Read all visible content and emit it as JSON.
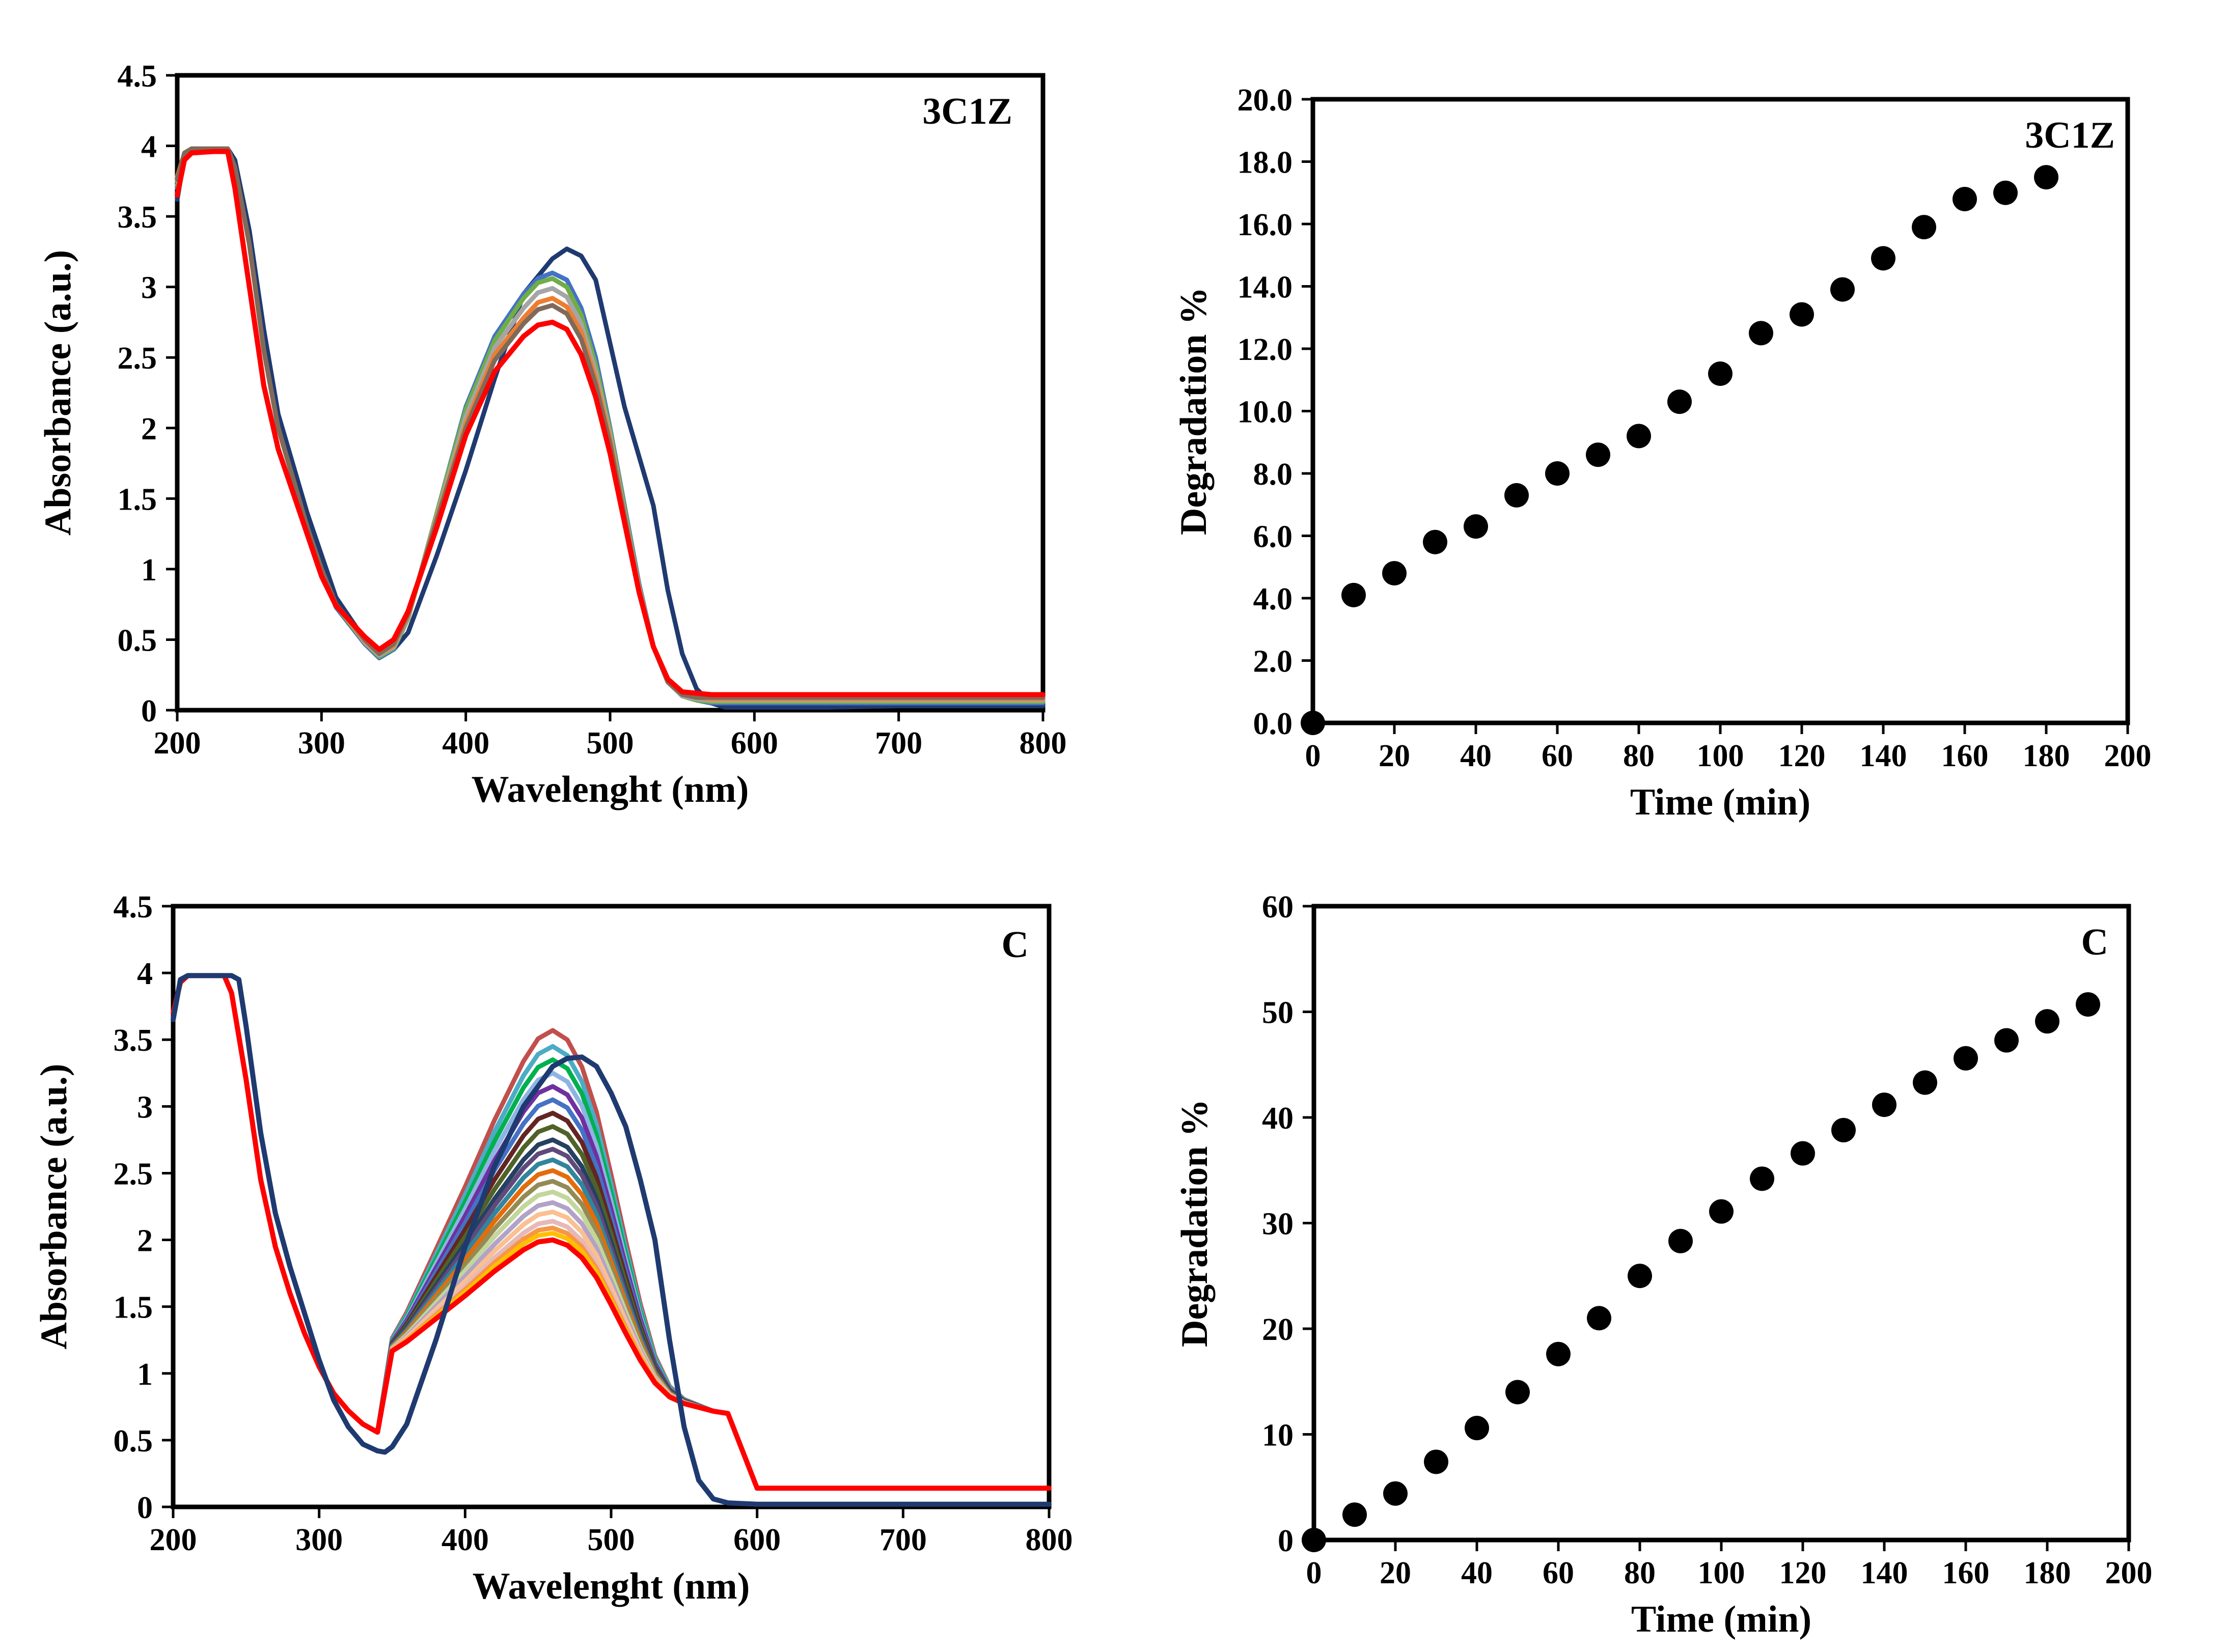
{
  "chart_data": [
    {
      "type": "line",
      "panel": "top-left",
      "annotation": "3C1Z",
      "xlabel": "Wavelenght (nm)",
      "ylabel": "Absorbance (a.u.)",
      "xlim": [
        200,
        800
      ],
      "ylim": [
        0,
        4.5
      ],
      "x_ticks": [
        200,
        300,
        400,
        500,
        600,
        700,
        800
      ],
      "x_tick_labels": [
        "200",
        "300",
        "400",
        "500",
        "600",
        "700",
        "800"
      ],
      "y_ticks": [
        0,
        0.5,
        1,
        1.5,
        2,
        2.5,
        3,
        3.5,
        4,
        4.5
      ],
      "y_tick_labels": [
        "0",
        "0.5",
        "1",
        "1.5",
        "2",
        "2.5",
        "3",
        "3.5",
        "4",
        "4.5"
      ],
      "grid": false,
      "legend": "none",
      "series": [
        {
          "color": "#1f3a70",
          "x": [
            200,
            205,
            210,
            225,
            235,
            240,
            250,
            260,
            270,
            280,
            290,
            300,
            310,
            320,
            330,
            340,
            350,
            360,
            380,
            400,
            420,
            440,
            460,
            470,
            480,
            490,
            500,
            510,
            520,
            530,
            540,
            550,
            560,
            570,
            580,
            600,
            650,
            700,
            800
          ],
          "y": [
            3.62,
            3.92,
            3.98,
            3.98,
            3.98,
            3.9,
            3.4,
            2.7,
            2.1,
            1.75,
            1.4,
            1.1,
            0.8,
            0.65,
            0.5,
            0.42,
            0.43,
            0.55,
            1.1,
            1.7,
            2.35,
            2.95,
            3.2,
            3.27,
            3.22,
            3.05,
            2.6,
            2.15,
            1.8,
            1.45,
            0.85,
            0.4,
            0.15,
            0.05,
            0.02,
            0.02,
            0.02,
            0.03,
            0.03
          ]
        },
        {
          "color": "#4472c4",
          "x": [
            200,
            205,
            210,
            225,
            235,
            240,
            250,
            260,
            270,
            280,
            290,
            300,
            310,
            320,
            330,
            340,
            350,
            360,
            380,
            400,
            420,
            440,
            450,
            460,
            470,
            480,
            490,
            500,
            510,
            520,
            530,
            540,
            550,
            560,
            570,
            580,
            600,
            650,
            700,
            800
          ],
          "y": [
            3.7,
            3.95,
            3.98,
            3.98,
            3.98,
            3.85,
            3.3,
            2.55,
            2.0,
            1.65,
            1.3,
            1.0,
            0.73,
            0.6,
            0.47,
            0.37,
            0.43,
            0.65,
            1.4,
            2.15,
            2.65,
            2.95,
            3.06,
            3.1,
            3.05,
            2.85,
            2.5,
            2.0,
            1.45,
            0.9,
            0.45,
            0.2,
            0.1,
            0.07,
            0.05,
            0.05,
            0.05,
            0.05,
            0.05,
            0.05
          ]
        },
        {
          "color": "#70ad47",
          "x": [
            200,
            205,
            210,
            225,
            235,
            240,
            250,
            260,
            270,
            280,
            290,
            300,
            310,
            320,
            330,
            340,
            350,
            360,
            380,
            400,
            420,
            440,
            450,
            460,
            470,
            480,
            490,
            500,
            510,
            520,
            530,
            540,
            550,
            560,
            570,
            580,
            600,
            650,
            700,
            800
          ],
          "y": [
            3.72,
            3.95,
            3.98,
            3.98,
            3.98,
            3.85,
            3.3,
            2.55,
            2.0,
            1.65,
            1.3,
            1.0,
            0.74,
            0.61,
            0.48,
            0.38,
            0.44,
            0.65,
            1.4,
            2.13,
            2.62,
            2.92,
            3.03,
            3.06,
            3.0,
            2.8,
            2.45,
            1.98,
            1.43,
            0.88,
            0.45,
            0.2,
            0.1,
            0.07,
            0.06,
            0.06,
            0.06,
            0.06,
            0.06,
            0.06
          ]
        },
        {
          "color": "#a5a5a5",
          "x": [
            200,
            205,
            210,
            225,
            235,
            240,
            250,
            260,
            270,
            280,
            290,
            300,
            310,
            320,
            330,
            340,
            350,
            360,
            380,
            400,
            420,
            440,
            450,
            460,
            470,
            480,
            490,
            500,
            510,
            520,
            530,
            540,
            550,
            560,
            570,
            580,
            600,
            650,
            700,
            800
          ],
          "y": [
            3.75,
            3.95,
            3.98,
            3.98,
            3.98,
            3.85,
            3.3,
            2.55,
            2.0,
            1.65,
            1.3,
            1.0,
            0.74,
            0.62,
            0.48,
            0.39,
            0.45,
            0.66,
            1.38,
            2.08,
            2.57,
            2.85,
            2.96,
            2.99,
            2.93,
            2.74,
            2.4,
            1.95,
            1.4,
            0.87,
            0.45,
            0.2,
            0.1,
            0.08,
            0.07,
            0.07,
            0.07,
            0.07,
            0.07,
            0.07
          ]
        },
        {
          "color": "#ed7d31",
          "x": [
            200,
            205,
            210,
            225,
            235,
            240,
            250,
            260,
            270,
            280,
            290,
            300,
            310,
            320,
            330,
            340,
            350,
            360,
            380,
            400,
            420,
            440,
            450,
            460,
            470,
            480,
            490,
            500,
            510,
            520,
            530,
            540,
            550,
            560,
            570,
            580,
            600,
            650,
            700,
            800
          ],
          "y": [
            3.78,
            3.95,
            3.98,
            3.98,
            3.98,
            3.85,
            3.3,
            2.55,
            2.0,
            1.65,
            1.3,
            1.0,
            0.75,
            0.62,
            0.49,
            0.4,
            0.46,
            0.67,
            1.36,
            2.03,
            2.52,
            2.78,
            2.89,
            2.92,
            2.86,
            2.68,
            2.35,
            1.92,
            1.38,
            0.86,
            0.45,
            0.2,
            0.11,
            0.09,
            0.08,
            0.08,
            0.08,
            0.08,
            0.08,
            0.08
          ]
        },
        {
          "color": "#7f6a5a",
          "x": [
            200,
            205,
            210,
            225,
            235,
            240,
            250,
            260,
            270,
            280,
            290,
            300,
            310,
            320,
            330,
            340,
            350,
            360,
            380,
            400,
            420,
            440,
            450,
            460,
            470,
            480,
            490,
            500,
            510,
            520,
            530,
            540,
            550,
            560,
            570,
            580,
            600,
            650,
            700,
            800
          ],
          "y": [
            3.76,
            3.95,
            3.98,
            3.98,
            3.98,
            3.85,
            3.3,
            2.55,
            2.0,
            1.65,
            1.3,
            1.0,
            0.75,
            0.63,
            0.5,
            0.4,
            0.47,
            0.68,
            1.35,
            2.0,
            2.48,
            2.74,
            2.84,
            2.87,
            2.81,
            2.63,
            2.31,
            1.89,
            1.37,
            0.85,
            0.45,
            0.2,
            0.11,
            0.09,
            0.09,
            0.09,
            0.09,
            0.09,
            0.09,
            0.09
          ]
        },
        {
          "color": "#ff0000",
          "x": [
            200,
            205,
            210,
            225,
            235,
            240,
            250,
            260,
            270,
            280,
            290,
            300,
            310,
            320,
            330,
            340,
            350,
            360,
            380,
            400,
            420,
            440,
            450,
            460,
            470,
            480,
            490,
            500,
            510,
            520,
            530,
            540,
            550,
            560,
            570,
            580,
            600,
            650,
            700,
            800
          ],
          "y": [
            3.65,
            3.9,
            3.95,
            3.96,
            3.96,
            3.7,
            3.0,
            2.3,
            1.85,
            1.55,
            1.25,
            0.95,
            0.74,
            0.63,
            0.52,
            0.43,
            0.5,
            0.7,
            1.3,
            1.95,
            2.4,
            2.65,
            2.73,
            2.75,
            2.7,
            2.52,
            2.22,
            1.82,
            1.33,
            0.84,
            0.45,
            0.22,
            0.13,
            0.12,
            0.11,
            0.11,
            0.11,
            0.11,
            0.11,
            0.11
          ]
        }
      ]
    },
    {
      "type": "scatter",
      "panel": "top-right",
      "annotation": "3C1Z",
      "xlabel": "Time (min)",
      "ylabel": "Degradation %",
      "xlim": [
        0,
        200
      ],
      "ylim": [
        0,
        20
      ],
      "x_ticks": [
        0,
        20,
        40,
        60,
        80,
        100,
        120,
        140,
        160,
        180,
        200
      ],
      "x_tick_labels": [
        "0",
        "20",
        "40",
        "60",
        "80",
        "100",
        "120",
        "140",
        "160",
        "180",
        "200"
      ],
      "y_ticks": [
        0,
        2,
        4,
        6,
        8,
        10,
        12,
        14,
        16,
        18,
        20
      ],
      "y_tick_labels": [
        "0.0",
        "2.0",
        "4.0",
        "6.0",
        "8.0",
        "10.0",
        "12.0",
        "14.0",
        "16.0",
        "18.0",
        "20.0"
      ],
      "grid": false,
      "legend": "none",
      "marker_color": "#000000",
      "x": [
        0,
        10,
        20,
        30,
        40,
        50,
        60,
        70,
        80,
        90,
        100,
        110,
        120,
        130,
        140,
        150,
        160,
        170,
        180
      ],
      "y": [
        0.0,
        4.1,
        4.8,
        5.8,
        6.3,
        7.3,
        8.0,
        8.6,
        9.2,
        10.3,
        11.2,
        12.5,
        13.1,
        13.9,
        14.9,
        15.9,
        16.8,
        17.0,
        17.5
      ]
    },
    {
      "type": "line",
      "panel": "bottom-left",
      "annotation": "C",
      "xlabel": "Wavelenght (nm)",
      "ylabel": "Absorbance (a.u.)",
      "xlim": [
        200,
        800
      ],
      "ylim": [
        0,
        4.5
      ],
      "x_ticks": [
        200,
        300,
        400,
        500,
        600,
        700,
        800
      ],
      "x_tick_labels": [
        "200",
        "300",
        "400",
        "500",
        "600",
        "700",
        "800"
      ],
      "y_ticks": [
        0,
        0.5,
        1,
        1.5,
        2,
        2.5,
        3,
        3.5,
        4,
        4.5
      ],
      "y_tick_labels": [
        "0",
        "0.5",
        "1",
        "1.5",
        "2",
        "2.5",
        "3",
        "3.5",
        "4",
        "4.5"
      ],
      "grid": false,
      "legend": "none",
      "peak_shape": {
        "x": [
          340,
          350,
          360,
          380,
          400,
          420,
          440,
          450,
          460,
          470,
          480,
          490,
          500,
          510,
          520,
          530,
          540,
          550,
          560,
          570,
          580
        ],
        "y": [
          0,
          0.06,
          0.14,
          0.33,
          0.52,
          0.72,
          0.9,
          0.97,
          1.0,
          0.98,
          0.91,
          0.79,
          0.62,
          0.44,
          0.27,
          0.13,
          0.05,
          0.02,
          0.01,
          0.0,
          0.0
        ]
      },
      "uv_region": {
        "x": [
          200,
          205,
          210,
          225,
          235,
          240,
          250,
          260,
          270,
          280,
          290,
          300,
          310,
          320,
          330,
          340
        ],
        "y": [
          3.7,
          3.93,
          3.98,
          3.98,
          3.98,
          3.85,
          3.2,
          2.45,
          1.95,
          1.6,
          1.3,
          1.05,
          0.85,
          0.72,
          0.62,
          0.56
        ]
      },
      "baseline": 0.14,
      "series": [
        {
          "color": "#c0504d",
          "peak": 3.22
        },
        {
          "color": "#4bacc6",
          "peak": 3.1
        },
        {
          "color": "#00b050",
          "peak": 3.0
        },
        {
          "color": "#8eb4e3",
          "peak": 2.9
        },
        {
          "color": "#7030a0",
          "peak": 2.8
        },
        {
          "color": "#4472c4",
          "peak": 2.7
        },
        {
          "color": "#632523",
          "peak": 2.6
        },
        {
          "color": "#4f6228",
          "peak": 2.5
        },
        {
          "color": "#254061",
          "peak": 2.4
        },
        {
          "color": "#604a7b",
          "peak": 2.33
        },
        {
          "color": "#31859c",
          "peak": 2.25
        },
        {
          "color": "#e46c0a",
          "peak": 2.17
        },
        {
          "color": "#948a54",
          "peak": 2.09
        },
        {
          "color": "#c3d69b",
          "peak": 2.01
        },
        {
          "color": "#b3a2c7",
          "peak": 1.93
        },
        {
          "color": "#fac090",
          "peak": 1.86
        },
        {
          "color": "#e6b9b8",
          "peak": 1.79
        },
        {
          "color": "#f79646",
          "peak": 1.74
        },
        {
          "color": "#ffc000",
          "peak": 1.7
        },
        {
          "color": "#ff0000",
          "peak": 1.65
        },
        {
          "color": "#1f3a70",
          "x": [
            200,
            205,
            210,
            225,
            235,
            240,
            245,
            250,
            260,
            270,
            280,
            290,
            300,
            310,
            320,
            330,
            340,
            345,
            350,
            360,
            380,
            400,
            420,
            440,
            460,
            470,
            480,
            490,
            500,
            510,
            520,
            530,
            540,
            550,
            560,
            570,
            580,
            600,
            650,
            700,
            800
          ],
          "y": [
            3.65,
            3.95,
            3.98,
            3.98,
            3.98,
            3.98,
            3.95,
            3.6,
            2.8,
            2.2,
            1.8,
            1.45,
            1.1,
            0.8,
            0.6,
            0.47,
            0.42,
            0.41,
            0.45,
            0.62,
            1.25,
            1.95,
            2.55,
            3.0,
            3.3,
            3.36,
            3.37,
            3.3,
            3.1,
            2.85,
            2.45,
            2.0,
            1.25,
            0.6,
            0.2,
            0.06,
            0.03,
            0.02,
            0.02,
            0.02,
            0.02
          ]
        }
      ]
    },
    {
      "type": "scatter",
      "panel": "bottom-right",
      "annotation": "C",
      "xlabel": "Time (min)",
      "ylabel": "Degradation %",
      "xlim": [
        0,
        200
      ],
      "ylim": [
        0,
        60
      ],
      "x_ticks": [
        0,
        20,
        40,
        60,
        80,
        100,
        120,
        140,
        160,
        180,
        200
      ],
      "x_tick_labels": [
        "0",
        "20",
        "40",
        "60",
        "80",
        "100",
        "120",
        "140",
        "160",
        "180",
        "200"
      ],
      "y_ticks": [
        0,
        10,
        20,
        30,
        40,
        50,
        60
      ],
      "y_tick_labels": [
        "0",
        "10",
        "20",
        "30",
        "40",
        "50",
        "60"
      ],
      "grid": false,
      "legend": "none",
      "marker_color": "#000000",
      "x": [
        0,
        10,
        20,
        30,
        40,
        50,
        60,
        70,
        80,
        90,
        100,
        110,
        120,
        130,
        140,
        150,
        160,
        170,
        180,
        190
      ],
      "y": [
        0,
        2.4,
        4.4,
        7.4,
        10.6,
        14.0,
        17.6,
        21.0,
        25.0,
        28.3,
        31.1,
        34.2,
        36.6,
        38.8,
        41.2,
        43.3,
        45.6,
        47.3,
        49.1,
        50.7
      ]
    }
  ]
}
